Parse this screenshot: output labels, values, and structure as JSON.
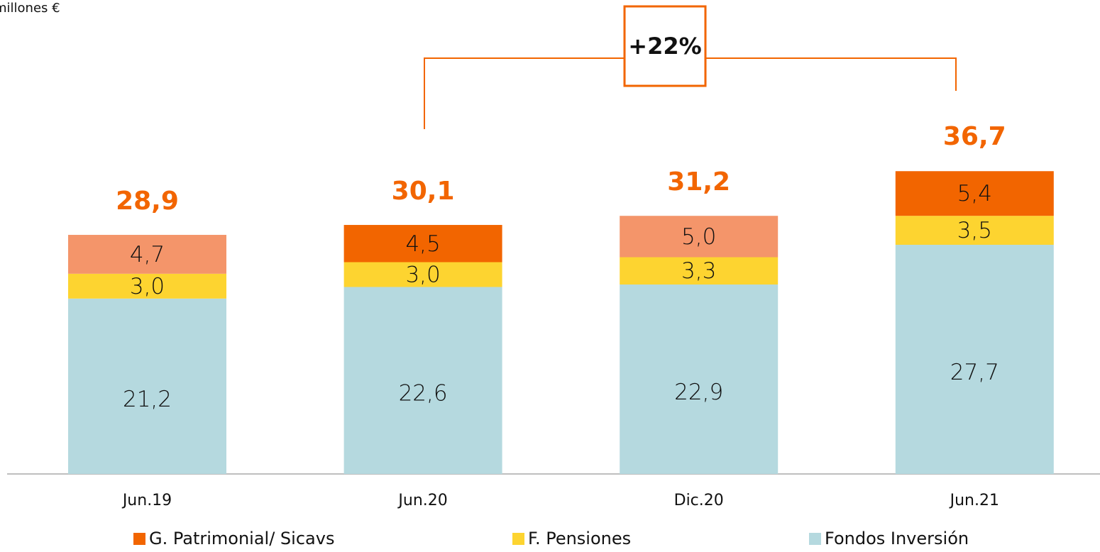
{
  "chart_data": {
    "type": "stacked_bar",
    "unit_label": "millones €",
    "categories": [
      "Jun.19",
      "Jun.20",
      "Dic.20",
      "Jun.21"
    ],
    "series": [
      {
        "name": "Fondos Inversión",
        "color": "#b5d9df",
        "values": [
          21.2,
          22.6,
          22.9,
          27.7
        ],
        "value_labels": [
          "21,2",
          "22,6",
          "22,9",
          "27,7"
        ]
      },
      {
        "name": "F. Pensiones",
        "color": "#fdd430",
        "values": [
          3.0,
          3.0,
          3.3,
          3.5
        ],
        "value_labels": [
          "3,0",
          "3,0",
          "3,3",
          "3,5"
        ]
      },
      {
        "name": "G. Patrimonial/ Sicavs",
        "color": "#f26500",
        "colors": [
          "#f4956a",
          "#f26500",
          "#f4956a",
          "#f26500"
        ],
        "values": [
          4.7,
          4.5,
          5.0,
          5.4
        ],
        "value_labels": [
          "4,7",
          "4,5",
          "5,0",
          "5,4"
        ]
      }
    ],
    "totals": [
      28.9,
      30.1,
      31.2,
      36.7
    ],
    "total_labels": [
      "28,9",
      "30,1",
      "31,2",
      "36,7"
    ],
    "annotation": "+22%",
    "annotation_color": "#f26500"
  }
}
